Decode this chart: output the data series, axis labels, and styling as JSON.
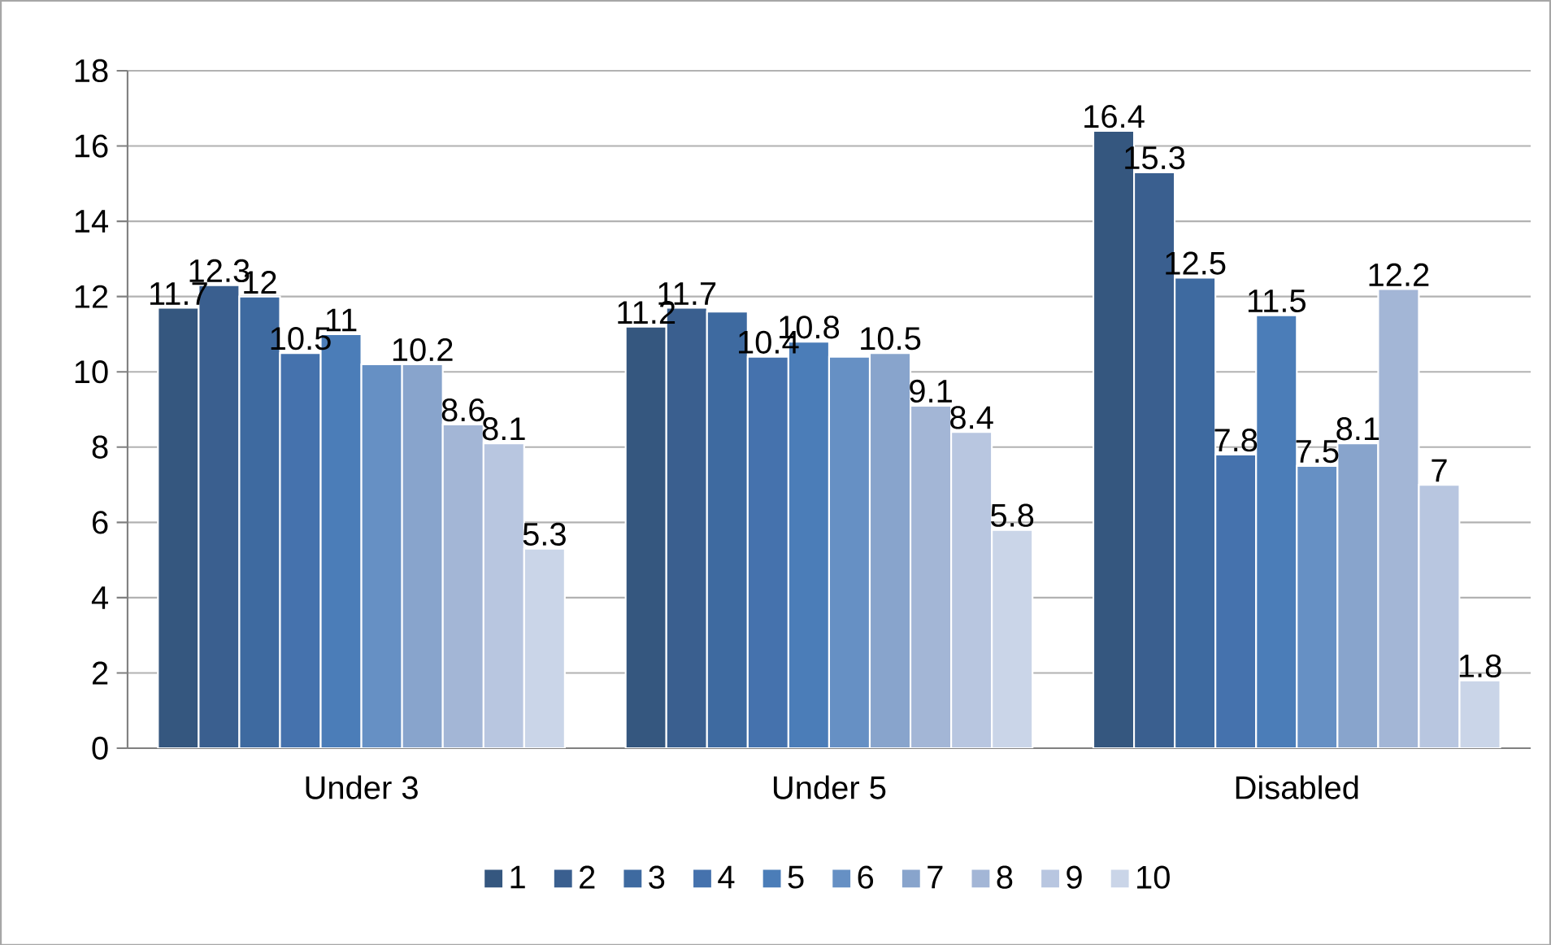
{
  "chart_data": {
    "type": "bar",
    "categories": [
      "Under 3",
      "Under 5",
      "Disabled"
    ],
    "series": [
      {
        "name": "1",
        "color": "#35577f",
        "values": [
          11.7,
          11.2,
          16.4
        ],
        "value_labels": [
          "11.7",
          "11.2",
          "16.4"
        ]
      },
      {
        "name": "2",
        "color": "#3a5f8f",
        "values": [
          12.3,
          11.7,
          15.3
        ],
        "value_labels": [
          "12.3",
          "11.7",
          "15.3"
        ]
      },
      {
        "name": "3",
        "color": "#3e6aa0",
        "values": [
          12,
          11.6,
          12.5
        ],
        "value_labels": [
          "12",
          null,
          "12.5"
        ]
      },
      {
        "name": "4",
        "color": "#4572ad",
        "values": [
          10.5,
          10.4,
          7.8
        ],
        "value_labels": [
          "10.5",
          "10.4",
          "7.8"
        ]
      },
      {
        "name": "5",
        "color": "#4b7db8",
        "values": [
          11,
          10.8,
          11.5
        ],
        "value_labels": [
          "11",
          "10.8",
          "11.5"
        ]
      },
      {
        "name": "6",
        "color": "#6690c4",
        "values": [
          10.2,
          10.4,
          7.5
        ],
        "value_labels": [
          null,
          null,
          "7.5"
        ]
      },
      {
        "name": "7",
        "color": "#88a4cc",
        "values": [
          10.2,
          10.5,
          8.1
        ],
        "value_labels": [
          "10.2",
          "10.5",
          "8.1"
        ]
      },
      {
        "name": "8",
        "color": "#a3b6d6",
        "values": [
          8.6,
          9.1,
          12.2
        ],
        "value_labels": [
          "8.6",
          "9.1",
          "12.2"
        ]
      },
      {
        "name": "9",
        "color": "#b8c6e0",
        "values": [
          8.1,
          8.4,
          7
        ],
        "value_labels": [
          "8.1",
          "8.4",
          "7"
        ]
      },
      {
        "name": "10",
        "color": "#cad5e8",
        "values": [
          5.3,
          5.8,
          1.8
        ],
        "value_labels": [
          "5.3",
          "5.8",
          "1.8"
        ]
      }
    ],
    "ylim": [
      0,
      18
    ],
    "yticks": [
      0,
      2,
      4,
      6,
      8,
      10,
      12,
      14,
      16,
      18
    ],
    "grid": "y",
    "legend": "bottom"
  }
}
